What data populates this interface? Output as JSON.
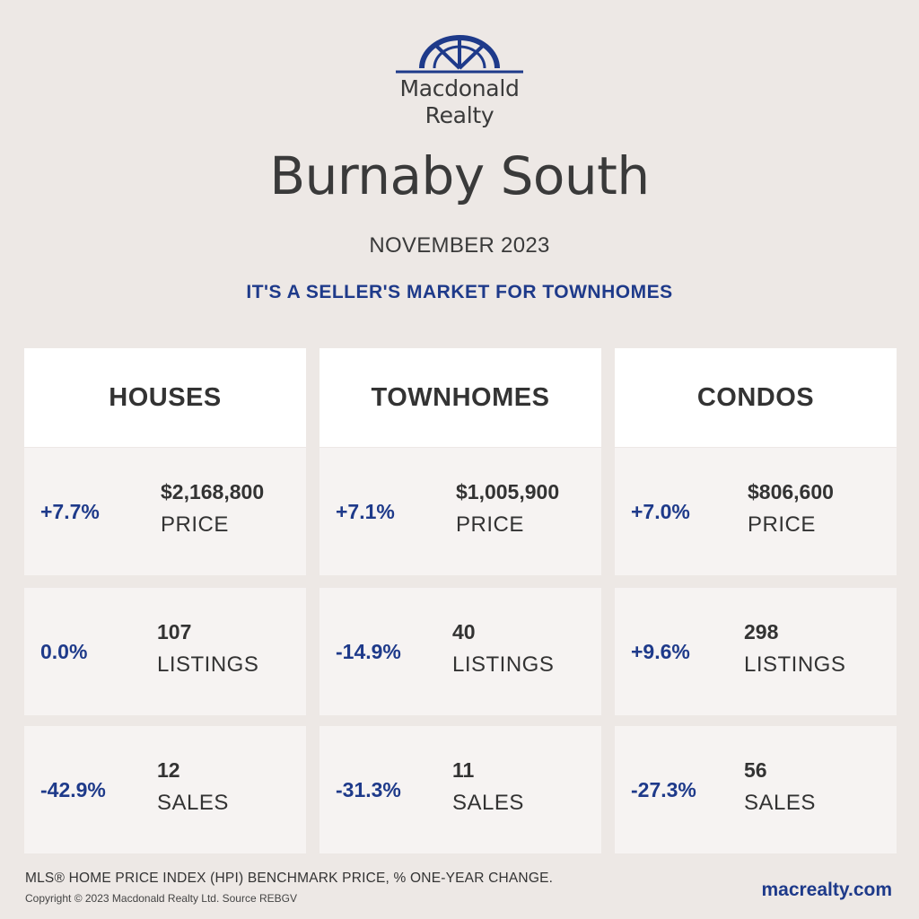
{
  "brand": {
    "logo_line1": "Macdonald",
    "logo_line2": "Realty",
    "logo_icon": "compass-rose-logo-icon",
    "accent_color": "#1e3a8a"
  },
  "title": "Burnaby South",
  "subtitle": "NOVEMBER 2023",
  "tagline": "IT'S A SELLER'S MARKET FOR TOWNHOMES",
  "columns": [
    {
      "header": "HOUSES",
      "stats": [
        {
          "change": "+7.7%",
          "value": "$2,168,800",
          "label": "PRICE"
        },
        {
          "change": "0.0%",
          "value": "107",
          "label": "LISTINGS"
        },
        {
          "change": "-42.9%",
          "value": "12",
          "label": "SALES"
        }
      ]
    },
    {
      "header": "TOWNHOMES",
      "stats": [
        {
          "change": "+7.1%",
          "value": "$1,005,900",
          "label": "PRICE"
        },
        {
          "change": "-14.9%",
          "value": "40",
          "label": "LISTINGS"
        },
        {
          "change": "-31.3%",
          "value": "11",
          "label": "SALES"
        }
      ]
    },
    {
      "header": "CONDOS",
      "stats": [
        {
          "change": "+7.0%",
          "value": "$806,600",
          "label": "PRICE"
        },
        {
          "change": "+9.6%",
          "value": "298",
          "label": "LISTINGS"
        },
        {
          "change": "-27.3%",
          "value": "56",
          "label": "SALES"
        }
      ]
    }
  ],
  "footer": {
    "note": "MLS® HOME PRICE INDEX (HPI) BENCHMARK PRICE, % ONE-YEAR CHANGE.",
    "copyright": "Copyright © 2023 Macdonald Realty Ltd. Source REBGV",
    "website": "macrealty.com"
  }
}
